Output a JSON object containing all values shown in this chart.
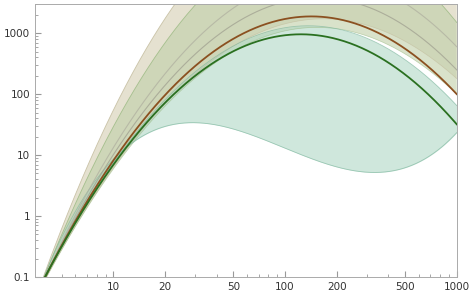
{
  "xlim": [
    3.5,
    1000
  ],
  "ylim": [
    0.1,
    3000
  ],
  "xlabel_ticks": [
    10,
    20,
    50,
    100,
    200,
    500,
    1000
  ],
  "ylabel_ticks": [
    0.1,
    1,
    10,
    100,
    1000
  ],
  "bg_color": "#ffffff",
  "band_beige_color": "#d8d2b8",
  "band_olive_color": "#c0d0a8",
  "band_teal1_color": "#a8d4c0",
  "band_teal2_color": "#b8e0d0",
  "line_brown_color": "#8B5020",
  "line_green_color": "#2a7020",
  "line_gray1_color": "#a0a090",
  "line_gray2_color": "#b0b0a0"
}
